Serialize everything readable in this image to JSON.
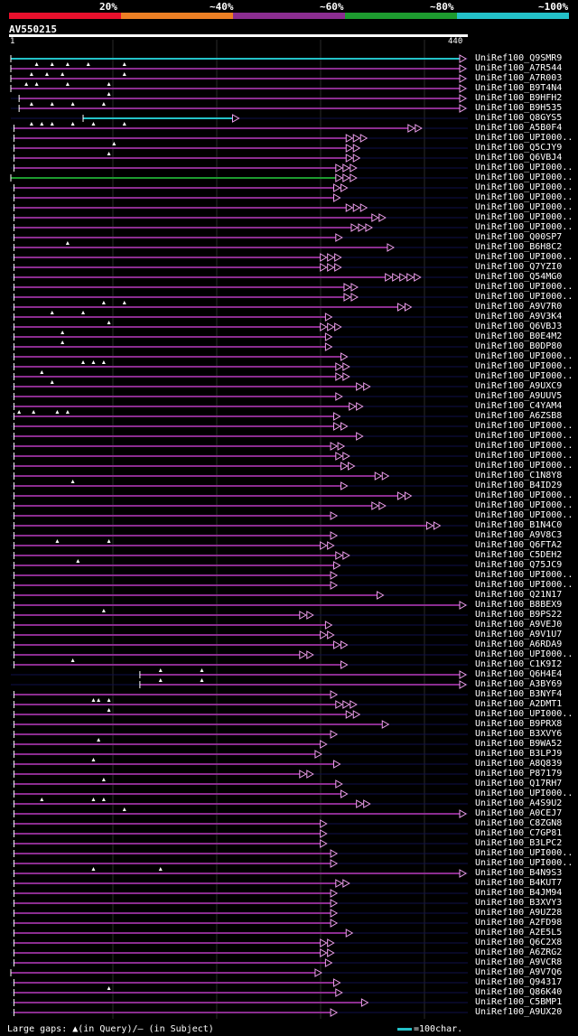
{
  "legend": {
    "labels": [
      "20%",
      "~40%",
      "~60%",
      "~80%",
      "~100%"
    ],
    "colors": [
      "#e8102c",
      "#ec7f24",
      "#8b2d90",
      "#1d9b2f",
      "#23c1c8"
    ]
  },
  "query": {
    "name": "AV550215",
    "start": "1",
    "end": "440",
    "length": 440
  },
  "hits": [
    {
      "label": "UniRef100_Q9SMR9",
      "s": 0,
      "e": 440,
      "c": 4,
      "m": []
    },
    {
      "label": "UniRef100_A7R544",
      "s": 0,
      "e": 440,
      "c": 2,
      "m": [
        25,
        40,
        55,
        75,
        110
      ]
    },
    {
      "label": "UniRef100_A7R003",
      "s": 0,
      "e": 440,
      "c": 2,
      "m": [
        20,
        35,
        50,
        110
      ]
    },
    {
      "label": "UniRef100_B9T4N4",
      "s": 0,
      "e": 440,
      "c": 2,
      "m": [
        15,
        25,
        55,
        95
      ]
    },
    {
      "label": "UniRef100_B9HFH2",
      "s": 8,
      "e": 440,
      "c": 2,
      "m": [
        95
      ]
    },
    {
      "label": "UniRef100_B9H535",
      "s": 8,
      "e": 440,
      "c": 2,
      "m": [
        20,
        40,
        60,
        90
      ]
    },
    {
      "label": "UniRef100_Q8GYS5",
      "s": 70,
      "e": 220,
      "c": 4,
      "m": []
    },
    {
      "label": "UniRef100_A5B0F4",
      "s": 3,
      "e": 390,
      "c": 2,
      "a": 1,
      "m": [
        20,
        30,
        40,
        60,
        80,
        110
      ]
    },
    {
      "label": "UniRef100_UPI000..",
      "s": 3,
      "e": 330,
      "c": 2,
      "a": 2,
      "m": []
    },
    {
      "label": "UniRef100_Q5CJY9",
      "s": 3,
      "e": 330,
      "c": 2,
      "a": 1,
      "m": [
        100
      ]
    },
    {
      "label": "UniRef100_Q6VBJ4",
      "s": 3,
      "e": 330,
      "c": 2,
      "a": 1,
      "m": [
        95
      ]
    },
    {
      "label": "UniRef100_UPI000..",
      "s": 3,
      "e": 320,
      "c": 2,
      "a": 2,
      "m": []
    },
    {
      "label": "UniRef100_UPI000..",
      "s": 0,
      "e": 320,
      "c": 3,
      "a": 2,
      "m": []
    },
    {
      "label": "UniRef100_UPI000..",
      "s": 3,
      "e": 318,
      "c": 2,
      "a": 1,
      "m": []
    },
    {
      "label": "UniRef100_UPI000..",
      "s": 3,
      "e": 318,
      "c": 2,
      "a": 0,
      "m": []
    },
    {
      "label": "UniRef100_UPI000..",
      "s": 3,
      "e": 330,
      "c": 2,
      "a": 2,
      "m": []
    },
    {
      "label": "UniRef100_UPI000..",
      "s": 3,
      "e": 355,
      "c": 2,
      "a": 1,
      "m": []
    },
    {
      "label": "UniRef100_UPI000..",
      "s": 3,
      "e": 335,
      "c": 2,
      "a": 2,
      "m": []
    },
    {
      "label": "UniRef100_Q00SP7",
      "s": 3,
      "e": 320,
      "c": 2,
      "a": 0,
      "m": []
    },
    {
      "label": "UniRef100_B6H8C2",
      "s": 3,
      "e": 370,
      "c": 2,
      "a": 0,
      "m": [
        55
      ]
    },
    {
      "label": "UniRef100_UPI000..",
      "s": 3,
      "e": 305,
      "c": 2,
      "a": 2,
      "m": []
    },
    {
      "label": "UniRef100_Q7YZI0",
      "s": 3,
      "e": 305,
      "c": 2,
      "a": 2,
      "m": []
    },
    {
      "label": "UniRef100_Q54MG0",
      "s": 3,
      "e": 368,
      "c": 2,
      "a": 4,
      "m": []
    },
    {
      "label": "UniRef100_UPI000..",
      "s": 3,
      "e": 328,
      "c": 2,
      "a": 1,
      "m": []
    },
    {
      "label": "UniRef100_UPI000..",
      "s": 3,
      "e": 328,
      "c": 2,
      "a": 1,
      "m": []
    },
    {
      "label": "UniRef100_A9V7R0",
      "s": 3,
      "e": 380,
      "c": 2,
      "a": 1,
      "m": [
        90,
        110
      ]
    },
    {
      "label": "UniRef100_A9V3K4",
      "s": 3,
      "e": 310,
      "c": 2,
      "a": 0,
      "m": [
        40,
        70
      ]
    },
    {
      "label": "UniRef100_Q6VBJ3",
      "s": 3,
      "e": 305,
      "c": 2,
      "a": 2,
      "m": [
        95
      ]
    },
    {
      "label": "UniRef100_B0E4M2",
      "s": 3,
      "e": 310,
      "c": 2,
      "a": 0,
      "m": [
        50
      ]
    },
    {
      "label": "UniRef100_B0DP80",
      "s": 3,
      "e": 310,
      "c": 2,
      "a": 0,
      "m": [
        50
      ]
    },
    {
      "label": "UniRef100_UPI000..",
      "s": 3,
      "e": 325,
      "c": 2,
      "a": 0,
      "m": []
    },
    {
      "label": "UniRef100_UPI000..",
      "s": 3,
      "e": 320,
      "c": 2,
      "a": 1,
      "m": [
        70,
        80,
        90
      ]
    },
    {
      "label": "UniRef100_UPI000..",
      "s": 3,
      "e": 320,
      "c": 2,
      "a": 1,
      "m": [
        30
      ]
    },
    {
      "label": "UniRef100_A9UXC9",
      "s": 3,
      "e": 340,
      "c": 2,
      "a": 1,
      "m": [
        40
      ]
    },
    {
      "label": "UniRef100_A9UUV5",
      "s": 3,
      "e": 320,
      "c": 2,
      "a": 0,
      "m": []
    },
    {
      "label": "UniRef100_C4YAM4",
      "s": 3,
      "e": 333,
      "c": 2,
      "a": 1,
      "m": []
    },
    {
      "label": "UniRef100_A6ZSB8",
      "s": 3,
      "e": 318,
      "c": 2,
      "a": 0,
      "m": [
        8,
        22,
        45,
        55
      ]
    },
    {
      "label": "UniRef100_UPI000..",
      "s": 3,
      "e": 318,
      "c": 2,
      "a": 1,
      "m": []
    },
    {
      "label": "UniRef100_UPI000..",
      "s": 3,
      "e": 340,
      "c": 2,
      "a": 0,
      "m": []
    },
    {
      "label": "UniRef100_UPI000..",
      "s": 3,
      "e": 315,
      "c": 2,
      "a": 1,
      "m": []
    },
    {
      "label": "UniRef100_UPI000..",
      "s": 3,
      "e": 320,
      "c": 2,
      "a": 1,
      "m": []
    },
    {
      "label": "UniRef100_UPI000..",
      "s": 3,
      "e": 325,
      "c": 2,
      "a": 1,
      "m": []
    },
    {
      "label": "UniRef100_C1N8Y8",
      "s": 3,
      "e": 358,
      "c": 2,
      "a": 1,
      "m": []
    },
    {
      "label": "UniRef100_B4ID29",
      "s": 3,
      "e": 325,
      "c": 2,
      "a": 0,
      "m": [
        60
      ]
    },
    {
      "label": "UniRef100_UPI000..",
      "s": 3,
      "e": 380,
      "c": 2,
      "a": 1,
      "m": []
    },
    {
      "label": "UniRef100_UPI000..",
      "s": 3,
      "e": 355,
      "c": 2,
      "a": 1,
      "m": []
    },
    {
      "label": "UniRef100_UPI000..",
      "s": 3,
      "e": 315,
      "c": 2,
      "a": 0,
      "m": []
    },
    {
      "label": "UniRef100_B1N4C0",
      "s": 3,
      "e": 408,
      "c": 2,
      "a": 1,
      "m": []
    },
    {
      "label": "UniRef100_A9V8C3",
      "s": 3,
      "e": 315,
      "c": 2,
      "a": 0,
      "m": []
    },
    {
      "label": "UniRef100_Q6FTA2",
      "s": 3,
      "e": 305,
      "c": 2,
      "a": 1,
      "m": [
        45,
        95
      ]
    },
    {
      "label": "UniRef100_C5DEH2",
      "s": 3,
      "e": 320,
      "c": 2,
      "a": 1,
      "m": []
    },
    {
      "label": "UniRef100_Q75JC9",
      "s": 3,
      "e": 318,
      "c": 2,
      "a": 0,
      "m": [
        65
      ]
    },
    {
      "label": "UniRef100_UPI000..",
      "s": 3,
      "e": 315,
      "c": 2,
      "a": 0,
      "m": []
    },
    {
      "label": "UniRef100_UPI000..",
      "s": 3,
      "e": 315,
      "c": 2,
      "a": 0,
      "m": []
    },
    {
      "label": "UniRef100_Q21N17",
      "s": 3,
      "e": 360,
      "c": 2,
      "a": 0,
      "m": []
    },
    {
      "label": "UniRef100_B8BEX9",
      "s": 3,
      "e": 440,
      "c": 2,
      "a": 0,
      "m": []
    },
    {
      "label": "UniRef100_B9PS22",
      "s": 3,
      "e": 285,
      "c": 2,
      "a": 1,
      "m": [
        90
      ]
    },
    {
      "label": "UniRef100_A9VEJ0",
      "s": 3,
      "e": 310,
      "c": 2,
      "a": 0,
      "m": []
    },
    {
      "label": "UniRef100_A9V1U7",
      "s": 3,
      "e": 305,
      "c": 2,
      "a": 1,
      "m": []
    },
    {
      "label": "UniRef100_A6RDA9",
      "s": 3,
      "e": 318,
      "c": 2,
      "a": 1,
      "m": []
    },
    {
      "label": "UniRef100_UPI000..",
      "s": 3,
      "e": 285,
      "c": 2,
      "a": 1,
      "m": []
    },
    {
      "label": "UniRef100_C1K9I2",
      "s": 3,
      "e": 325,
      "c": 2,
      "a": 0,
      "m": [
        60
      ]
    },
    {
      "label": "UniRef100_Q6H4E4",
      "s": 125,
      "e": 440,
      "c": 2,
      "m": [
        145,
        185
      ]
    },
    {
      "label": "UniRef100_A3BY69",
      "s": 125,
      "e": 440,
      "c": 2,
      "m": [
        145,
        185
      ]
    },
    {
      "label": "UniRef100_B3NYF4",
      "s": 3,
      "e": 315,
      "c": 2,
      "a": 0,
      "m": []
    },
    {
      "label": "UniRef100_A2DMT1",
      "s": 3,
      "e": 320,
      "c": 2,
      "a": 2,
      "m": [
        80,
        85,
        95
      ]
    },
    {
      "label": "UniRef100_UPI000..",
      "s": 3,
      "e": 330,
      "c": 2,
      "a": 1,
      "m": [
        95
      ]
    },
    {
      "label": "UniRef100_B9PRX8",
      "s": 3,
      "e": 365,
      "c": 2,
      "a": 0,
      "m": []
    },
    {
      "label": "UniRef100_B3XVY6",
      "s": 3,
      "e": 315,
      "c": 2,
      "a": 0,
      "m": []
    },
    {
      "label": "UniRef100_B9WA52",
      "s": 3,
      "e": 305,
      "c": 2,
      "a": 0,
      "m": [
        85
      ]
    },
    {
      "label": "UniRef100_B3LPJ9",
      "s": 3,
      "e": 300,
      "c": 2,
      "a": 0,
      "m": []
    },
    {
      "label": "UniRef100_A8Q839",
      "s": 3,
      "e": 318,
      "c": 2,
      "a": 0,
      "m": [
        80
      ]
    },
    {
      "label": "UniRef100_P87179",
      "s": 3,
      "e": 285,
      "c": 2,
      "a": 1,
      "m": []
    },
    {
      "label": "UniRef100_Q17RH7",
      "s": 3,
      "e": 320,
      "c": 2,
      "a": 0,
      "m": [
        90
      ]
    },
    {
      "label": "UniRef100_UPI000..",
      "s": 3,
      "e": 325,
      "c": 2,
      "a": 0,
      "m": []
    },
    {
      "label": "UniRef100_A4S9U2",
      "s": 3,
      "e": 340,
      "c": 2,
      "a": 1,
      "m": [
        30,
        80,
        90
      ]
    },
    {
      "label": "UniRef100_A0CEJ7",
      "s": 3,
      "e": 440,
      "c": 2,
      "a": 0,
      "m": [
        110
      ]
    },
    {
      "label": "UniRef100_C8ZGN8",
      "s": 3,
      "e": 305,
      "c": 2,
      "a": 0,
      "m": []
    },
    {
      "label": "UniRef100_C7GP81",
      "s": 3,
      "e": 305,
      "c": 2,
      "a": 0,
      "m": []
    },
    {
      "label": "UniRef100_B3LPC2",
      "s": 3,
      "e": 305,
      "c": 2,
      "a": 0,
      "m": []
    },
    {
      "label": "UniRef100_UPI000..",
      "s": 3,
      "e": 315,
      "c": 2,
      "a": 0,
      "m": []
    },
    {
      "label": "UniRef100_UPI000..",
      "s": 3,
      "e": 315,
      "c": 2,
      "a": 0,
      "m": []
    },
    {
      "label": "UniRef100_B4N9S3",
      "s": 3,
      "e": 440,
      "c": 2,
      "a": 0,
      "m": [
        80,
        145
      ]
    },
    {
      "label": "UniRef100_B4KUT7",
      "s": 3,
      "e": 320,
      "c": 2,
      "a": 1,
      "m": []
    },
    {
      "label": "UniRef100_B4JM94",
      "s": 3,
      "e": 315,
      "c": 2,
      "a": 0,
      "m": []
    },
    {
      "label": "UniRef100_B3XVY3",
      "s": 3,
      "e": 315,
      "c": 2,
      "a": 0,
      "m": []
    },
    {
      "label": "UniRef100_A9UZ28",
      "s": 3,
      "e": 315,
      "c": 2,
      "a": 0,
      "m": []
    },
    {
      "label": "UniRef100_A2FD98",
      "s": 3,
      "e": 315,
      "c": 2,
      "a": 0,
      "m": []
    },
    {
      "label": "UniRef100_A2E5L5",
      "s": 3,
      "e": 330,
      "c": 2,
      "a": 0,
      "m": []
    },
    {
      "label": "UniRef100_Q6C2X8",
      "s": 3,
      "e": 305,
      "c": 2,
      "a": 1,
      "m": []
    },
    {
      "label": "UniRef100_A6ZRG2",
      "s": 3,
      "e": 305,
      "c": 2,
      "a": 1,
      "m": []
    },
    {
      "label": "UniRef100_A9VCR8",
      "s": 3,
      "e": 310,
      "c": 2,
      "a": 0,
      "m": []
    },
    {
      "label": "UniRef100_A9V7Q6",
      "s": 0,
      "e": 300,
      "c": 2,
      "a": 0,
      "m": []
    },
    {
      "label": "UniRef100_Q94317",
      "s": 3,
      "e": 318,
      "c": 2,
      "a": 0,
      "m": []
    },
    {
      "label": "UniRef100_Q86K40",
      "s": 3,
      "e": 320,
      "c": 2,
      "a": 0,
      "m": [
        95
      ]
    },
    {
      "label": "UniRef100_C5BMP1",
      "s": 3,
      "e": 345,
      "c": 2,
      "a": 0,
      "m": []
    },
    {
      "label": "UniRef100_A9UX20",
      "s": 3,
      "e": 315,
      "c": 2,
      "a": 0,
      "m": []
    }
  ],
  "footer": {
    "gaps_text": "Large gaps: ▲(in Query)/– (in Subject)",
    "scale_text": "=100char."
  }
}
